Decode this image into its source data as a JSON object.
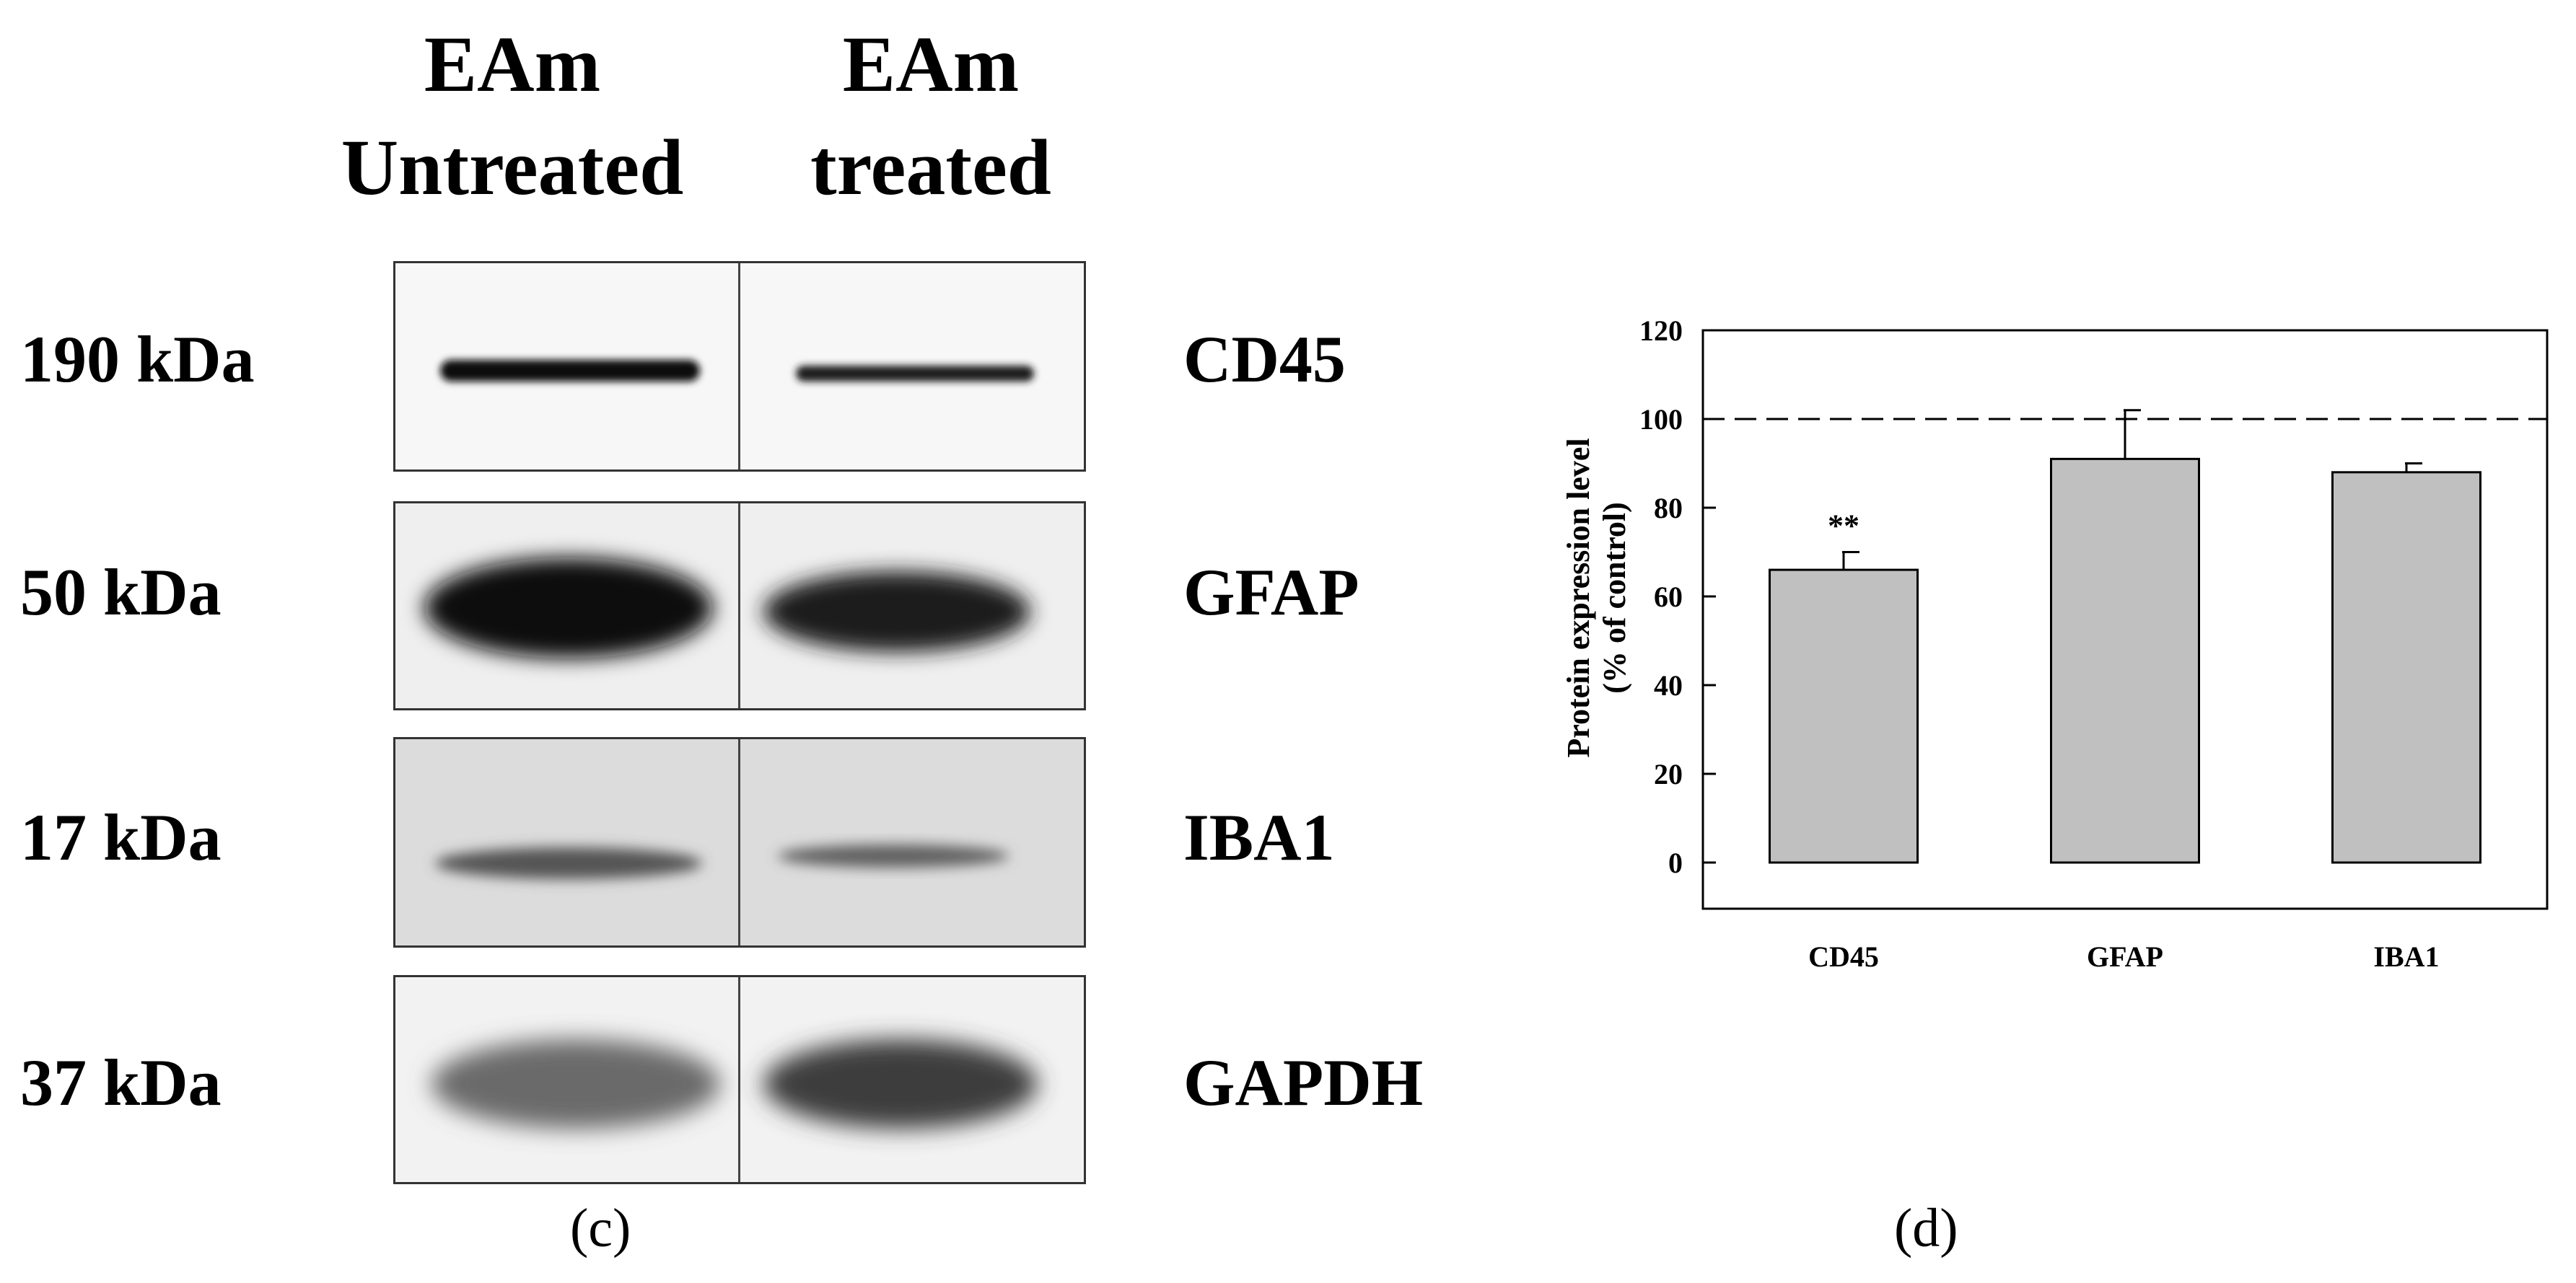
{
  "western_blot": {
    "lanes": [
      "EAm\nUntreated",
      "EAm\ntreated"
    ],
    "lane_header_1": "EAm",
    "lane_header_1b": "Untreated",
    "lane_header_2": "EAm",
    "lane_header_2b": "treated",
    "rows": [
      {
        "mw": "190 kDa",
        "protein": "CD45"
      },
      {
        "mw": "50 kDa",
        "protein": "GFAP"
      },
      {
        "mw": "17 kDa",
        "protein": "IBA1"
      },
      {
        "mw": "37 kDa",
        "protein": "GAPDH"
      }
    ],
    "panel_label": "(c)"
  },
  "chart_panel_label": "(d)",
  "chart_data": {
    "type": "bar",
    "categories": [
      "CD45",
      "GFAP",
      "IBA1"
    ],
    "values": [
      66,
      91,
      88
    ],
    "errors": [
      4,
      11,
      2
    ],
    "annotations": [
      {
        "category": "CD45",
        "text": "**"
      }
    ],
    "reference_line": 100,
    "ylabel": "Protein expression level\n(% of control)",
    "ylabel_line1": "Protein expression level",
    "ylabel_line2": "(% of control)",
    "xlabel": "",
    "ylim": [
      0,
      120
    ],
    "yticks": [
      0,
      20,
      40,
      60,
      80,
      100,
      120
    ],
    "grid": false,
    "bar_color": "#c0c0c0"
  }
}
